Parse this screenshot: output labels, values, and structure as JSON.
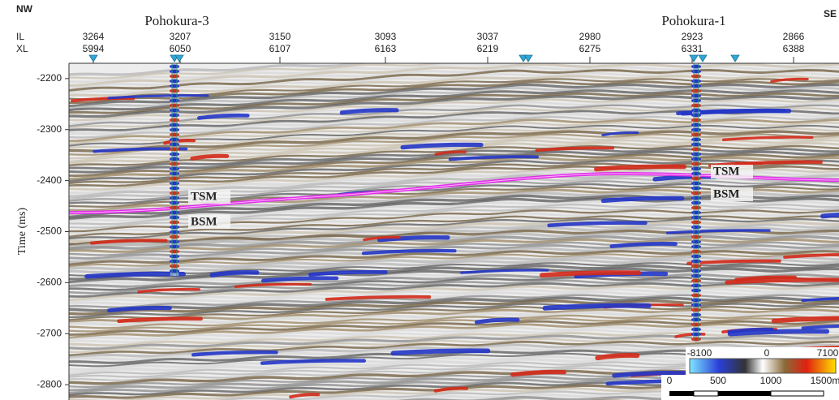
{
  "corners": {
    "left": "NW",
    "right": "SE"
  },
  "wells": [
    "Pohokura-3",
    "Pohokura-1"
  ],
  "header_labels": {
    "il": "IL",
    "xl": "XL"
  },
  "traces": [
    {
      "il": "3264",
      "xl": "5994"
    },
    {
      "il": "3207",
      "xl": "6050"
    },
    {
      "il": "3150",
      "xl": "6107"
    },
    {
      "il": "3093",
      "xl": "6163"
    },
    {
      "il": "3037",
      "xl": "6219"
    },
    {
      "il": "2980",
      "xl": "6275"
    },
    {
      "il": "2923",
      "xl": "6331"
    },
    {
      "il": "2866",
      "xl": "6388"
    }
  ],
  "section": {
    "y_label": "Time (ms)",
    "ylim": [
      -2170,
      -2830
    ],
    "yticks": [
      -2200,
      -2300,
      -2400,
      -2500,
      -2600,
      -2700,
      -2800
    ]
  },
  "horizons": [
    {
      "top": "TSM",
      "base": "BSM"
    },
    {
      "top": "TSM",
      "base": "BSM"
    }
  ],
  "colorbar": {
    "min": "-8100",
    "mid": "0",
    "max": "7100"
  },
  "scalebar": [
    "0",
    "500",
    "1000",
    "1500m"
  ]
}
